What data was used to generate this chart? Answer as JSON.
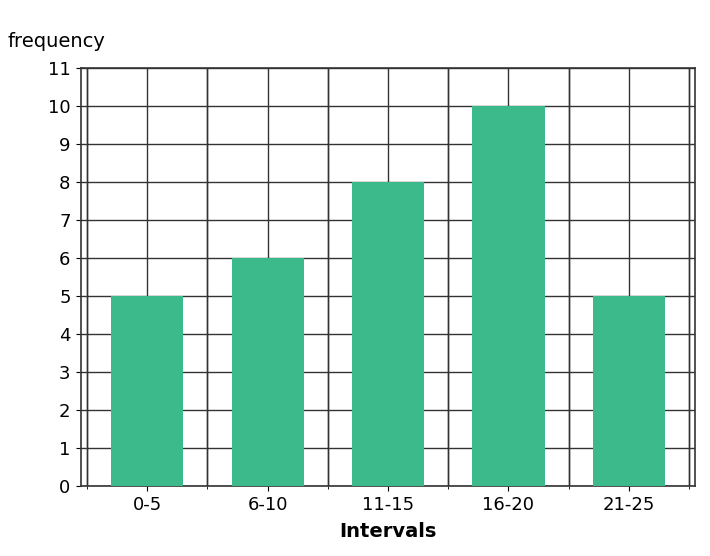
{
  "categories": [
    "0-5",
    "6-10",
    "11-15",
    "16-20",
    "21-25"
  ],
  "values": [
    5,
    6,
    8,
    10,
    5
  ],
  "bar_color": "#3dba8c",
  "ylabel": "frequency",
  "xlabel": "Intervals",
  "ylim": [
    0,
    11
  ],
  "yticks": [
    0,
    1,
    2,
    3,
    4,
    5,
    6,
    7,
    8,
    9,
    10
  ],
  "grid_color": "#333333",
  "background_color": "#ffffff",
  "ylabel_fontsize": 14,
  "xlabel_fontsize": 14,
  "tick_fontsize": 13
}
